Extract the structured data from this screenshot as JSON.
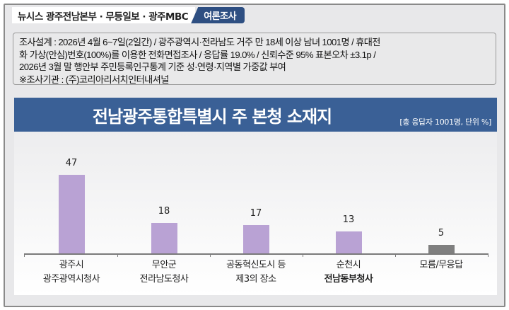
{
  "header": {
    "source": "뉴시스  광주전남본부 · 무등일보 · 광주MBC",
    "tab": "여론조사"
  },
  "info": {
    "lines": [
      "조사설계 : 2026년 4월 6~7일(2일간) / 광주광역시·전라남도 거주 만 18세 이상 남녀 1001명 / 휴대전",
      "화 가상(안심)번호(100%)를 이용한 전화면접조사 / 응답률 19.0% / 신뢰수준 95% 표본오차 ±3.1p /",
      "2026년 3월 말 행안부 주민등록인구통계 기준 성·연령·지역별 가중값 부여",
      "※조사기관 : (주)코리아리서치인터내셔널"
    ]
  },
  "chart": {
    "title": "전남광주통합특별시 주 본청 소재지",
    "note": "[총 응답자 1001명, 단위 %]"
  },
  "colors": {
    "title_bar": "#3a6096",
    "header_tab": "#2e4f82",
    "bar_main": "#b9a2d4",
    "bar_other": "#7f7f7f"
  },
  "chart_data": {
    "type": "bar",
    "title": "전남광주통합특별시 주 본청 소재지",
    "subtitle": "[총 응답자 1001명, 단위 %]",
    "categories": [
      "광주시 광주광역시청사",
      "무안군 전라남도청사",
      "공동혁신도시 등 제3의 장소",
      "순천시 전남동부청사",
      "모름/무응답"
    ],
    "category_lines": [
      [
        "광주시",
        "광주광역시청사"
      ],
      [
        "무안군",
        "전라남도청사"
      ],
      [
        "공동혁신도시  등",
        "제3의 장소"
      ],
      [
        "순천시",
        "전남동부청사"
      ],
      [
        "모름/무응답",
        ""
      ]
    ],
    "values": [
      47,
      18,
      17,
      13,
      5
    ],
    "value_labels": [
      "47",
      "18",
      "17",
      "13",
      "5"
    ],
    "bar_colors": [
      "#b9a2d4",
      "#b9a2d4",
      "#b9a2d4",
      "#b9a2d4",
      "#7f7f7f"
    ],
    "xlabel": "",
    "ylabel": "",
    "ylim": [
      0,
      50
    ],
    "grid": false,
    "legend": "none"
  }
}
